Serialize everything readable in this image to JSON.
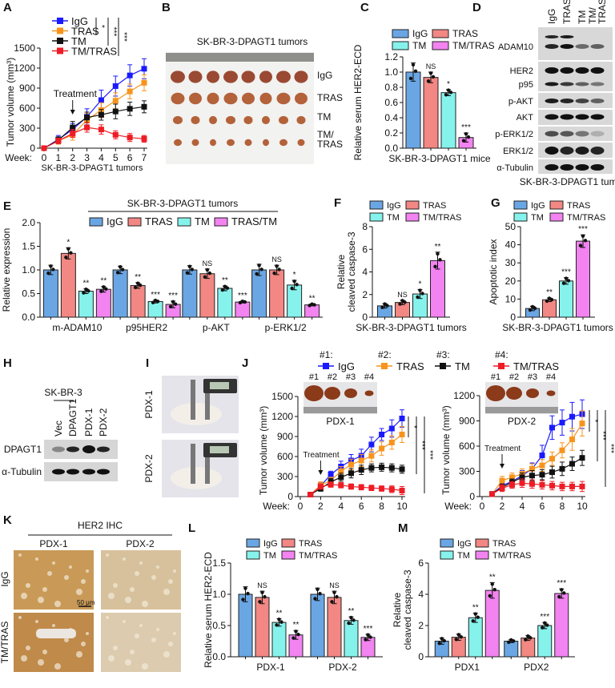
{
  "colors": {
    "IgG_bar": "#6aa6e4",
    "TRAS_bar": "#f28783",
    "TM_bar": "#86f2ec",
    "TMTRAS_bar": "#f283f0",
    "IgG_line": "#1a1aff",
    "TRAS_line": "#f7941d",
    "TM_line": "#111111",
    "TMTRAS_line": "#ee1c25"
  },
  "panel_labels": [
    "A",
    "B",
    "C",
    "D",
    "E",
    "F",
    "G",
    "H",
    "I",
    "J",
    "K",
    "L",
    "M"
  ],
  "panel_B": {
    "title": "SK-BR-3-DPAGT1 tumors",
    "rows": [
      "IgG",
      "TRAS",
      "TM",
      "TM/",
      "TRAS"
    ]
  },
  "panel_D": {
    "lanes": [
      "IgG",
      "TRAS",
      "TM",
      "TM/",
      "TRAS"
    ],
    "blots": [
      "ADAM10",
      "HER2",
      "p95",
      "p-AKT",
      "AKT",
      "p-ERK1/2",
      "ERK1/2",
      "α-Tubulin"
    ],
    "caption": "SK-BR-3-DPAGT1 tumors"
  },
  "panel_H": {
    "group": "SK-BR-3",
    "lanes": [
      "Vec",
      "DPAGT1",
      "PDX-1",
      "PDX-2"
    ],
    "blots": [
      "DPAGT1",
      "α-Tubulin"
    ]
  },
  "panel_I": {
    "rows": [
      "PDX-1",
      "PDX-2"
    ]
  },
  "panel_K": {
    "title": "HER2 IHC",
    "cols": [
      "PDX-1",
      "PDX-2"
    ],
    "rows": [
      "IgG",
      "TM/TRAS"
    ],
    "scale_bar": "50 μm"
  },
  "chart_data": [
    {
      "panel": "A",
      "type": "line",
      "ylabel": "Tumor volume (mm³)",
      "xlabel": "SK-BR-3-DPAGT1 tumors",
      "xprefix": "Week:",
      "x": [
        0,
        1,
        2,
        3,
        4,
        5,
        6,
        7
      ],
      "xticks": [
        0,
        1,
        2,
        3,
        4,
        5,
        6,
        7
      ],
      "ylim": [
        0,
        1500
      ],
      "yticks": [
        0,
        300,
        600,
        900,
        1200,
        1500
      ],
      "annotation": "Treatment",
      "annotation_x": 2,
      "series": [
        {
          "name": "IgG",
          "values": [
            0,
            130,
            280,
            470,
            720,
            930,
            1090,
            1190
          ],
          "errors": [
            0,
            60,
            90,
            120,
            150,
            150,
            160,
            150
          ]
        },
        {
          "name": "TRAS",
          "values": [
            0,
            110,
            200,
            420,
            570,
            710,
            850,
            980
          ],
          "errors": [
            0,
            50,
            80,
            100,
            110,
            120,
            110,
            120
          ]
        },
        {
          "name": "TM",
          "values": [
            0,
            120,
            310,
            460,
            500,
            550,
            590,
            620
          ],
          "errors": [
            0,
            50,
            90,
            80,
            80,
            110,
            100,
            90
          ]
        },
        {
          "name": "TM/TRAS",
          "values": [
            0,
            110,
            220,
            310,
            280,
            200,
            160,
            140
          ],
          "errors": [
            0,
            40,
            60,
            70,
            70,
            60,
            60,
            50
          ]
        }
      ],
      "significance": [
        "*",
        "***",
        "***"
      ]
    },
    {
      "panel": "C",
      "type": "bar",
      "ylabel": "Relative serum HER2-ECD",
      "xlabel": "SK-BR-3-DPAGT1 mice",
      "categories": [
        ""
      ],
      "ylim": [
        0,
        1.2
      ],
      "yticks": [
        "0.0",
        "0.2",
        "0.4",
        "0.6",
        "0.8",
        "1.0",
        "1.2"
      ],
      "series": [
        {
          "name": "IgG",
          "values": [
            1.0
          ],
          "errors": [
            0.12
          ],
          "sig": [
            ""
          ]
        },
        {
          "name": "TRAS",
          "values": [
            0.93
          ],
          "errors": [
            0.07
          ],
          "sig": [
            "NS"
          ]
        },
        {
          "name": "TM",
          "values": [
            0.73
          ],
          "errors": [
            0.04
          ],
          "sig": [
            "*"
          ]
        },
        {
          "name": "TM/TRAS",
          "values": [
            0.14
          ],
          "errors": [
            0.06
          ],
          "sig": [
            "***"
          ]
        }
      ]
    },
    {
      "panel": "E",
      "type": "bar",
      "ylabel": "Relative expression",
      "title": "SK-BR-3-DPAGT1 tumors",
      "categories": [
        "m-ADAM10",
        "p95HER2",
        "p-AKT",
        "p-ERK1/2"
      ],
      "ylim": [
        0,
        2.0
      ],
      "yticks": [
        "0.0",
        "0.5",
        "1.0",
        "1.5",
        "2.0"
      ],
      "series": [
        {
          "name": "IgG",
          "values": [
            1.0,
            1.0,
            1.0,
            1.0
          ],
          "errors": [
            0.1,
            0.08,
            0.09,
            0.12
          ],
          "sig": [
            "",
            "",
            "",
            ""
          ]
        },
        {
          "name": "TRAS",
          "values": [
            1.35,
            0.67,
            0.92,
            1.0
          ],
          "errors": [
            0.12,
            0.06,
            0.1,
            0.1
          ],
          "sig": [
            "*",
            "**",
            "NS",
            "NS"
          ]
        },
        {
          "name": "TM",
          "values": [
            0.55,
            0.33,
            0.61,
            0.68
          ],
          "errors": [
            0.05,
            0.03,
            0.05,
            0.1
          ],
          "sig": [
            "**",
            "***",
            "**",
            "*"
          ]
        },
        {
          "name": "TRAS/TM",
          "values": [
            0.59,
            0.27,
            0.32,
            0.26
          ],
          "errors": [
            0.06,
            0.07,
            0.02,
            0.02
          ],
          "sig": [
            "**",
            "***",
            "***",
            "**"
          ]
        }
      ]
    },
    {
      "panel": "F",
      "type": "bar",
      "ylabel": "Relative cleaved caspase-3",
      "ylabel_lines": [
        "Relative",
        "cleaved caspase-3"
      ],
      "xlabel": "SK-BR-3-DPAGT1 tumors",
      "categories": [
        ""
      ],
      "ylim": [
        0,
        8
      ],
      "yticks": [
        "0",
        "2",
        "4",
        "6",
        "8"
      ],
      "series": [
        {
          "name": "IgG",
          "values": [
            1.0
          ],
          "errors": [
            0.2
          ],
          "sig": [
            ""
          ]
        },
        {
          "name": "TRAS",
          "values": [
            1.3
          ],
          "errors": [
            0.2
          ],
          "sig": [
            "NS"
          ]
        },
        {
          "name": "TM",
          "values": [
            2.05
          ],
          "errors": [
            0.4
          ],
          "sig": [
            "*"
          ]
        },
        {
          "name": "TM/TRAS",
          "values": [
            5.0
          ],
          "errors": [
            0.75
          ],
          "sig": [
            "**"
          ]
        }
      ]
    },
    {
      "panel": "G",
      "type": "bar",
      "ylabel": "Apoptotic index",
      "xlabel": "SK-BR-3-DPAGT1 tumors",
      "categories": [
        ""
      ],
      "ylim": [
        0,
        50
      ],
      "yticks": [
        "0",
        "10",
        "20",
        "30",
        "40",
        "50"
      ],
      "series": [
        {
          "name": "IgG",
          "values": [
            4.8
          ],
          "errors": [
            1.2
          ],
          "sig": [
            ""
          ]
        },
        {
          "name": "TRAS",
          "values": [
            9.6
          ],
          "errors": [
            1.0
          ],
          "sig": [
            "**"
          ]
        },
        {
          "name": "TM",
          "values": [
            20
          ],
          "errors": [
            1.8
          ],
          "sig": [
            "***"
          ]
        },
        {
          "name": "TM/TRAS",
          "values": [
            42
          ],
          "errors": [
            3.5
          ],
          "sig": [
            "***"
          ]
        }
      ]
    },
    {
      "panel": "J",
      "type": "line",
      "ylabel": "Tumor volume (mm³)",
      "xprefix": "Week:",
      "image_label": "PDX-1",
      "legend_prefix": [
        "#1:",
        "#2:",
        "#3:",
        "#4:"
      ],
      "image_tags": [
        "#1",
        "#2",
        "#3",
        "#4"
      ],
      "x": [
        1,
        2,
        3,
        4,
        5,
        6,
        7,
        8,
        9,
        10
      ],
      "xticks": [
        0,
        2,
        4,
        6,
        8,
        10
      ],
      "xlim": [
        0,
        10
      ],
      "ylim": [
        0,
        1500
      ],
      "yticks": [
        0,
        300,
        600,
        900,
        1200,
        1500
      ],
      "annotation": "Treatment",
      "annotation_x": 2,
      "series": [
        {
          "name": "IgG",
          "values": [
            30,
            160,
            330,
            450,
            540,
            610,
            780,
            930,
            1020,
            1170
          ],
          "errors": [
            10,
            50,
            50,
            80,
            90,
            100,
            110,
            90,
            130,
            130
          ]
        },
        {
          "name": "TRAS",
          "values": [
            30,
            170,
            240,
            380,
            480,
            540,
            610,
            720,
            810,
            930
          ],
          "errors": [
            10,
            50,
            50,
            70,
            80,
            90,
            90,
            100,
            100,
            120
          ]
        },
        {
          "name": "TM",
          "values": [
            30,
            120,
            220,
            290,
            350,
            400,
            430,
            440,
            430,
            410
          ],
          "errors": [
            10,
            40,
            50,
            60,
            70,
            70,
            60,
            60,
            60,
            60
          ]
        },
        {
          "name": "TM/TRAS",
          "values": [
            30,
            150,
            180,
            170,
            150,
            140,
            130,
            120,
            110,
            90
          ],
          "errors": [
            10,
            40,
            40,
            40,
            40,
            40,
            40,
            40,
            50,
            60
          ]
        }
      ],
      "significance": [
        "*",
        "***",
        "***"
      ]
    },
    {
      "panel": "J",
      "type": "line",
      "ylabel": "Tumor volume (mm³)",
      "xprefix": "Week:",
      "image_label": "PDX-2",
      "image_tags": [
        "#1",
        "#2",
        "#3",
        "#4"
      ],
      "x": [
        1,
        2,
        3,
        4,
        5,
        6,
        7,
        8,
        9,
        10
      ],
      "xticks": [
        0,
        2,
        4,
        6,
        8,
        10
      ],
      "xlim": [
        0,
        10
      ],
      "ylim": [
        0,
        1200
      ],
      "yticks": [
        0,
        300,
        600,
        900,
        1200
      ],
      "annotation": "Treatment",
      "annotation_x": 2,
      "series": [
        {
          "name": "IgG",
          "values": [
            30,
            130,
            180,
            250,
            330,
            490,
            820,
            880,
            950,
            980
          ],
          "errors": [
            10,
            40,
            50,
            60,
            70,
            120,
            140,
            150,
            170,
            170
          ]
        },
        {
          "name": "TRAS",
          "values": [
            30,
            190,
            230,
            270,
            330,
            370,
            450,
            550,
            680,
            870
          ],
          "errors": [
            10,
            50,
            50,
            60,
            60,
            70,
            80,
            90,
            130,
            150
          ]
        },
        {
          "name": "TM",
          "values": [
            30,
            110,
            170,
            230,
            250,
            260,
            290,
            330,
            390,
            460
          ],
          "errors": [
            10,
            40,
            40,
            50,
            60,
            60,
            70,
            80,
            80,
            90
          ]
        },
        {
          "name": "TM/TRAS",
          "values": [
            30,
            100,
            140,
            160,
            150,
            140,
            130,
            120,
            120,
            120
          ],
          "errors": [
            10,
            40,
            40,
            50,
            50,
            50,
            50,
            50,
            50,
            60
          ]
        }
      ],
      "significance": [
        "*",
        "***",
        "***"
      ]
    },
    {
      "panel": "L",
      "type": "bar",
      "ylabel": "Relative serum HER2-ECD",
      "categories": [
        "PDX-1",
        "PDX-2"
      ],
      "ylim": [
        0,
        1.5
      ],
      "yticks": [
        "0.0",
        "0.5",
        "1.0",
        "1.5"
      ],
      "series": [
        {
          "name": "IgG",
          "values": [
            1.0,
            1.0
          ],
          "errors": [
            0.12,
            0.1
          ],
          "sig": [
            "",
            ""
          ]
        },
        {
          "name": "TRAS",
          "values": [
            0.95,
            0.95
          ],
          "errors": [
            0.1,
            0.1
          ],
          "sig": [
            "NS",
            "NS"
          ]
        },
        {
          "name": "TM",
          "values": [
            0.55,
            0.58
          ],
          "errors": [
            0.06,
            0.06
          ],
          "sig": [
            "**",
            "**"
          ]
        },
        {
          "name": "TM/TRAS",
          "values": [
            0.35,
            0.31
          ],
          "errors": [
            0.07,
            0.05
          ],
          "sig": [
            "**",
            "***"
          ]
        }
      ]
    },
    {
      "panel": "M",
      "type": "bar",
      "ylabel": "Relative cleaved caspase-3",
      "ylabel_lines": [
        "Relative",
        "cleaved caspase-3"
      ],
      "categories": [
        "PDX1",
        "PDX2"
      ],
      "ylim": [
        0,
        6
      ],
      "yticks": [
        "0",
        "2",
        "4",
        "6"
      ],
      "series": [
        {
          "name": "IgG",
          "values": [
            1.0,
            1.0
          ],
          "errors": [
            0.2,
            0.1
          ],
          "sig": [
            "",
            ""
          ]
        },
        {
          "name": "TRAS",
          "values": [
            1.25,
            1.2
          ],
          "errors": [
            0.2,
            0.15
          ],
          "sig": [
            "",
            ""
          ]
        },
        {
          "name": "TM",
          "values": [
            2.5,
            2.0
          ],
          "errors": [
            0.3,
            0.2
          ],
          "sig": [
            "**",
            "***"
          ]
        },
        {
          "name": "TM/TRAS",
          "values": [
            4.25,
            4.05
          ],
          "errors": [
            0.5,
            0.3
          ],
          "sig": [
            "**",
            "***"
          ]
        }
      ]
    }
  ]
}
